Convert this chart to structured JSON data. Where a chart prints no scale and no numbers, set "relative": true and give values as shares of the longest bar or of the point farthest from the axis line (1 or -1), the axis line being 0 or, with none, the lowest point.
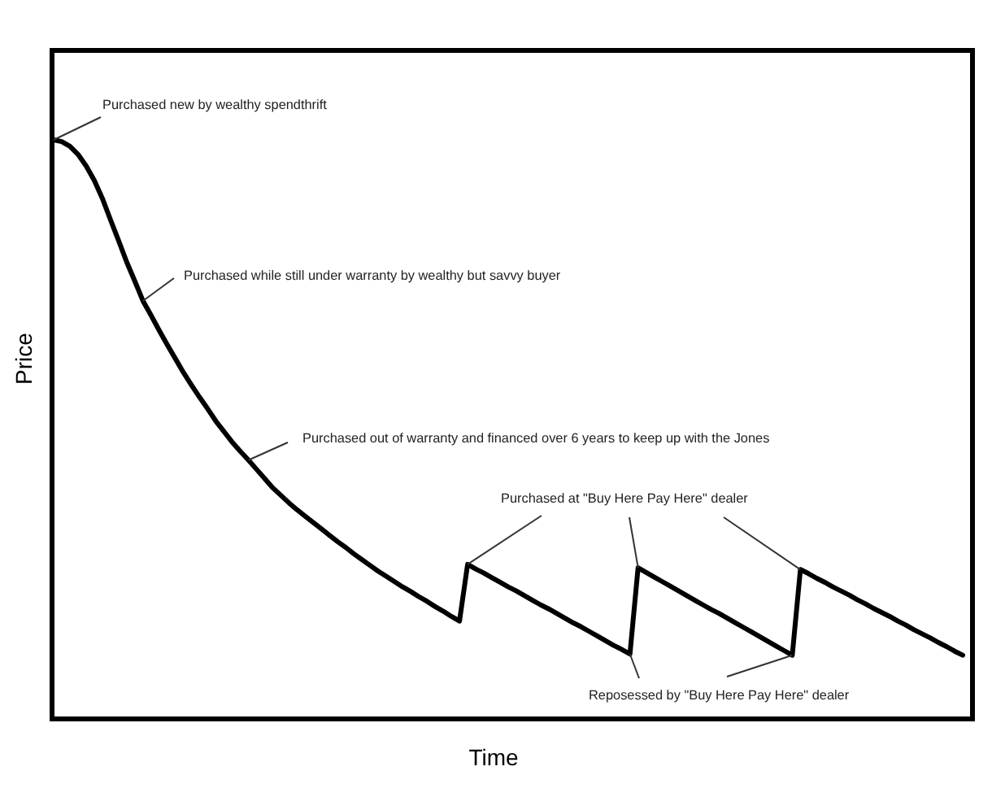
{
  "chart_data": {
    "type": "line",
    "xlabel": "Time",
    "ylabel": "Price",
    "relative": true,
    "color": "#000000",
    "categories": [
      null,
      null,
      null,
      null,
      null,
      null,
      null,
      null,
      null,
      null,
      null,
      null,
      null,
      null,
      null,
      null,
      null,
      null,
      null,
      null,
      null,
      null,
      null,
      null,
      null,
      null,
      null,
      null,
      null,
      null,
      null,
      null,
      null,
      null,
      null,
      null,
      null,
      null,
      null,
      null,
      null,
      null,
      null,
      null,
      null,
      null,
      null,
      null,
      null,
      null,
      null,
      null,
      null,
      null,
      null,
      null,
      null,
      null,
      null,
      null,
      null,
      null,
      null,
      null,
      null,
      null,
      null,
      null,
      null,
      null,
      null,
      null,
      null,
      null,
      null,
      null,
      null,
      null,
      null,
      null,
      null,
      null,
      null,
      null,
      null,
      null,
      null,
      null,
      null,
      null,
      null,
      null,
      null,
      null,
      null,
      null,
      null,
      null,
      null,
      null,
      null,
      null,
      null,
      null,
      null,
      null,
      null,
      null,
      null,
      null,
      null,
      null,
      null
    ],
    "values": [
      1,
      0.997,
      0.989,
      0.975,
      0.955,
      0.93,
      0.899,
      0.862,
      0.826,
      0.789,
      0.756,
      0.722,
      0.697,
      0.671,
      0.646,
      0.622,
      0.598,
      0.576,
      0.555,
      0.535,
      0.514,
      0.496,
      0.478,
      0.462,
      0.447,
      0.431,
      0.415,
      0.399,
      0.386,
      0.373,
      0.361,
      0.35,
      0.339,
      0.328,
      0.317,
      0.306,
      0.296,
      0.285,
      0.275,
      0.265,
      0.255,
      0.246,
      0.237,
      0.228,
      0.22,
      0.211,
      0.203,
      0.194,
      0.186,
      0.177,
      0.169,
      0.267,
      0.259,
      0.252,
      0.244,
      0.236,
      0.228,
      0.221,
      0.213,
      0.205,
      0.197,
      0.19,
      0.182,
      0.174,
      0.166,
      0.159,
      0.151,
      0.143,
      0.135,
      0.127,
      0.12,
      0.112,
      0.261,
      0.253,
      0.245,
      0.237,
      0.229,
      0.221,
      0.213,
      0.205,
      0.197,
      0.189,
      0.182,
      0.174,
      0.166,
      0.158,
      0.15,
      0.142,
      0.134,
      0.126,
      0.118,
      0.11,
      0.258,
      0.251,
      0.243,
      0.236,
      0.228,
      0.221,
      0.214,
      0.206,
      0.199,
      0.191,
      0.184,
      0.177,
      0.169,
      0.162,
      0.154,
      0.147,
      0.14,
      0.132,
      0.125,
      0.117,
      0.11
    ],
    "annotations": [
      "Purchased new by wealthy spendthrift",
      "Purchased while still under warranty by wealthy but savvy buyer",
      "Purchased out of warranty and financed over 6 years to keep up with the Jones",
      "Purchased at \"Buy Here Pay Here\" dealer",
      "Reposessed by \"Buy Here Pay Here\" dealer"
    ]
  }
}
